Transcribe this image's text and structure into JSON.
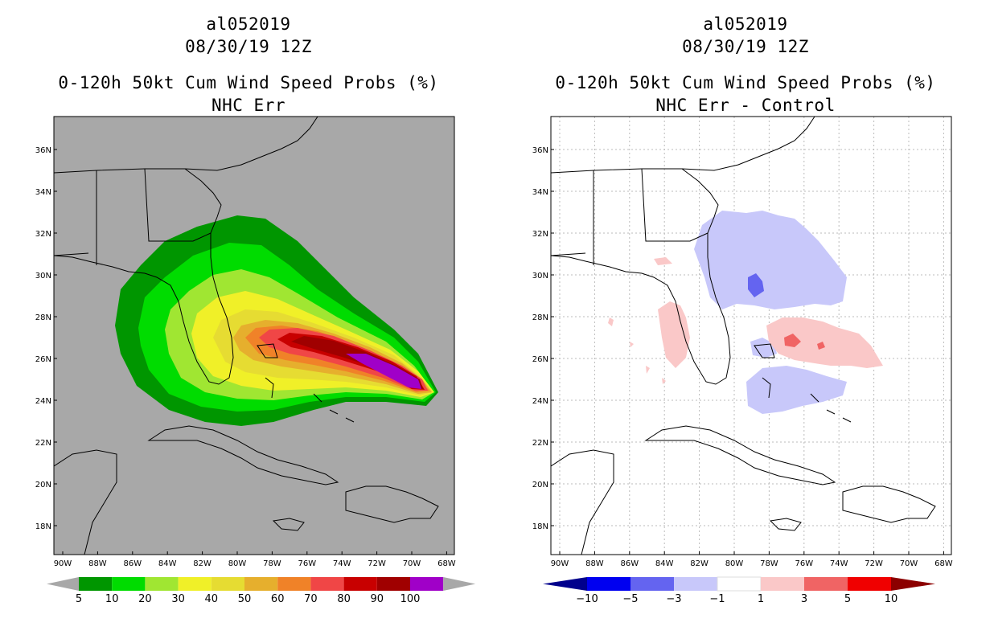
{
  "left": {
    "storm_id": "al052019",
    "datetime": "08/30/19 12Z",
    "product": "0-120h 50kt Cum Wind Speed Probs (%)",
    "subtitle": "NHC Err",
    "lat_labels": [
      "36N",
      "34N",
      "32N",
      "30N",
      "28N",
      "26N",
      "24N",
      "22N",
      "20N",
      "18N"
    ],
    "lon_labels": [
      "90W",
      "88W",
      "86W",
      "84W",
      "82W",
      "80W",
      "78W",
      "76W",
      "74W",
      "72W",
      "70W",
      "68W"
    ],
    "colorbar": {
      "labels": [
        "5",
        "10",
        "20",
        "30",
        "40",
        "50",
        "60",
        "70",
        "80",
        "90",
        "100"
      ],
      "colors": [
        "#009600",
        "#00dc00",
        "#a0e632",
        "#f0f028",
        "#e6dc32",
        "#e6af2d",
        "#f08228",
        "#f04646",
        "#c80000",
        "#a00000",
        "#a000c8"
      ]
    }
  },
  "right": {
    "storm_id": "al052019",
    "datetime": "08/30/19 12Z",
    "product": "0-120h 50kt Cum Wind Speed Probs (%)",
    "subtitle": "NHC Err - Control",
    "lat_labels": [
      "36N",
      "34N",
      "32N",
      "30N",
      "28N",
      "26N",
      "24N",
      "22N",
      "20N",
      "18N"
    ],
    "lon_labels": [
      "90W",
      "88W",
      "86W",
      "84W",
      "82W",
      "80W",
      "78W",
      "76W",
      "74W",
      "72W",
      "70W",
      "68W"
    ],
    "colorbar": {
      "labels": [
        "-10",
        "-5",
        "-3",
        "-1",
        "1",
        "3",
        "5",
        "10"
      ],
      "colors": [
        "#00008c",
        "#0000f0",
        "#6464f0",
        "#c8c8fa",
        "#ffffff",
        "#fac8c8",
        "#f06464",
        "#f00000",
        "#8c0000"
      ]
    }
  }
}
